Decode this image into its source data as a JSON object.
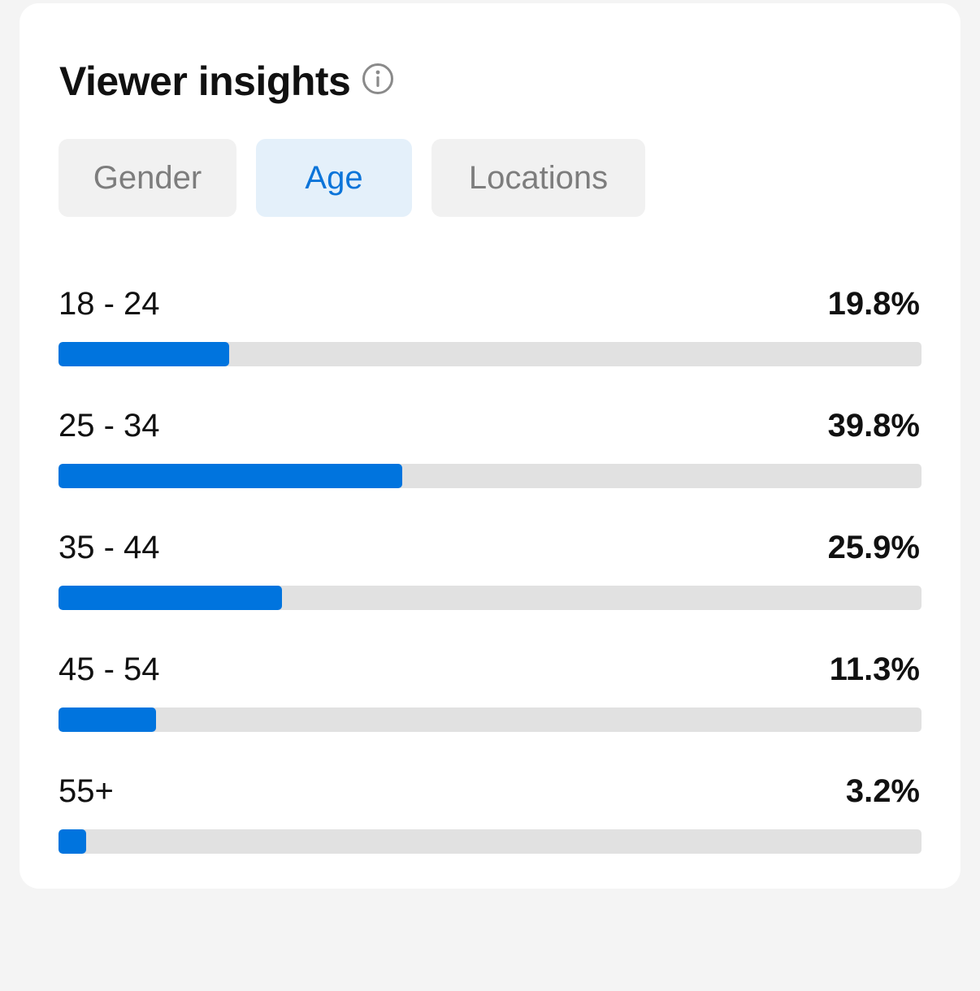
{
  "header": {
    "title": "Viewer insights"
  },
  "tabs": [
    {
      "label": "Gender",
      "selected": false
    },
    {
      "label": "Age",
      "selected": true
    },
    {
      "label": "Locations",
      "selected": false
    }
  ],
  "age_groups": [
    {
      "label": "18 - 24",
      "value": "19.8%",
      "fraction": 0.198
    },
    {
      "label": "25 - 34",
      "value": "39.8%",
      "fraction": 0.398
    },
    {
      "label": "35 - 44",
      "value": "25.9%",
      "fraction": 0.259
    },
    {
      "label": "45 - 54",
      "value": "11.3%",
      "fraction": 0.113
    },
    {
      "label": "55+",
      "value": "3.2%",
      "fraction": 0.032
    }
  ],
  "colors": {
    "accent": "#0074de",
    "track": "#e1e1e1",
    "selected_tab_bg": "#e4f0fa",
    "tab_bg": "#f1f1f1"
  }
}
